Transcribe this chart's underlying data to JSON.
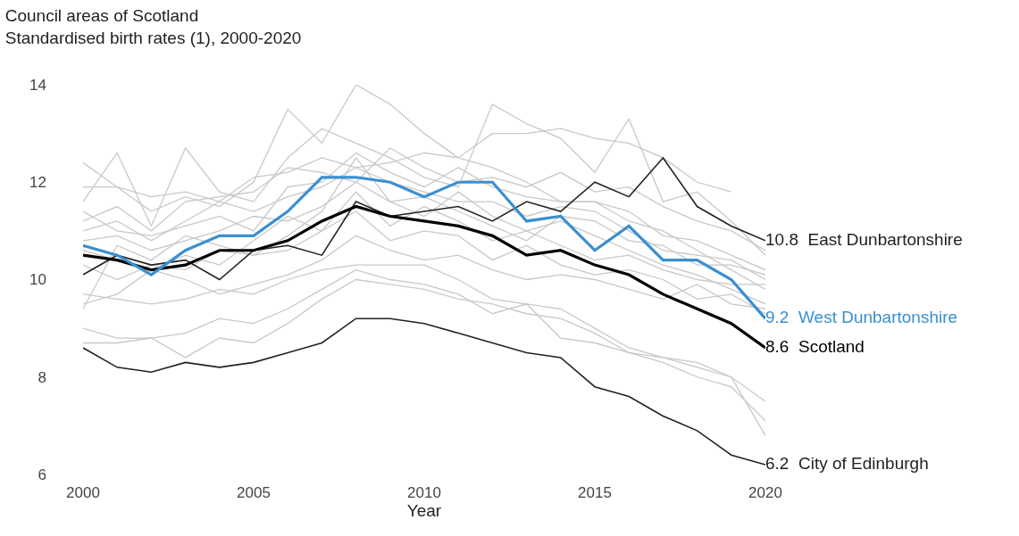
{
  "chart_data": {
    "type": "line",
    "title": "Council areas of Scotland",
    "subtitle": "Standardised birth rates (1), 2000-2020",
    "xlabel": "Year",
    "x": [
      2000,
      2001,
      2002,
      2003,
      2004,
      2005,
      2006,
      2007,
      2008,
      2009,
      2010,
      2011,
      2012,
      2013,
      2014,
      2015,
      2016,
      2017,
      2018,
      2019,
      2020
    ],
    "xlim": [
      2000,
      2020
    ],
    "xticks": [
      2000,
      2005,
      2010,
      2015,
      2020
    ],
    "ylim": [
      6,
      14
    ],
    "yticks": [
      6,
      8,
      10,
      12,
      14
    ],
    "marker": "none",
    "line_style": "solid",
    "series": [
      {
        "color": "#c8c8c8",
        "values": [
          8.7,
          8.7,
          8.8,
          8.4,
          8.8,
          8.7,
          9.1,
          9.6,
          10.0,
          9.9,
          9.8,
          9.6,
          9.5,
          9.3,
          9.2,
          8.9,
          8.5,
          8.4,
          8.2,
          8.0,
          7.5
        ]
      },
      {
        "color": "#c8c8c8",
        "values": [
          9.0,
          8.8,
          8.8,
          8.9,
          9.2,
          9.1,
          9.4,
          9.8,
          10.2,
          10.0,
          9.9,
          9.7,
          9.3,
          9.5,
          8.8,
          8.7,
          8.5,
          8.3,
          8.0,
          7.8,
          7.1
        ]
      },
      {
        "color": "#c8c8c8",
        "values": [
          9.7,
          9.6,
          9.5,
          9.6,
          9.8,
          9.7,
          10.0,
          10.2,
          10.3,
          10.3,
          10.3,
          10.0,
          9.6,
          9.5,
          9.4,
          9.0,
          8.6,
          8.4,
          8.3,
          8.0,
          6.8
        ]
      },
      {
        "color": "#c8c8c8",
        "values": [
          9.5,
          9.7,
          10.2,
          10.0,
          9.7,
          9.9,
          10.1,
          10.4,
          10.9,
          10.6,
          10.4,
          10.5,
          10.2,
          10.0,
          10.1,
          10.0,
          9.8,
          9.6,
          9.9,
          9.5,
          9.4
        ]
      },
      {
        "color": "#c8c8c8",
        "values": [
          12.4,
          11.9,
          11.4,
          11.7,
          11.5,
          12.0,
          13.5,
          12.8,
          14.0,
          13.6,
          13.0,
          12.5,
          12.3,
          12.0,
          11.6,
          11.6,
          11.4,
          10.9,
          10.8,
          10.5,
          10.2
        ]
      },
      {
        "color": "#c8c8c8",
        "values": [
          11.6,
          12.6,
          11.1,
          12.7,
          11.8,
          11.6,
          12.5,
          13.1,
          12.8,
          12.5,
          12.1,
          11.9,
          13.6,
          13.2,
          12.9,
          12.2,
          13.3,
          11.6,
          11.8,
          11.2,
          10.5
        ]
      },
      {
        "color": "#c8c8c8",
        "values": [
          11.9,
          11.9,
          11.7,
          11.8,
          11.6,
          12.1,
          12.2,
          12.5,
          12.3,
          12.4,
          12.6,
          12.5,
          13.0,
          13.0,
          13.1,
          12.9,
          12.8,
          12.5,
          12.0,
          11.8,
          null
        ]
      },
      {
        "color": "#c8c8c8",
        "values": [
          11.0,
          11.2,
          10.8,
          11.2,
          11.6,
          11.4,
          11.7,
          11.9,
          12.3,
          12.0,
          11.8,
          11.6,
          11.6,
          11.3,
          11.5,
          11.4,
          11.0,
          10.6,
          10.5,
          10.4,
          10.0
        ]
      },
      {
        "color": "#c8c8c8",
        "values": [
          10.8,
          10.9,
          10.6,
          10.8,
          11.0,
          11.3,
          11.2,
          11.5,
          12.0,
          11.6,
          11.3,
          11.8,
          11.3,
          11.0,
          11.2,
          10.9,
          10.6,
          10.3,
          10.1,
          9.8,
          9.5
        ]
      },
      {
        "color": "#c8c8c8",
        "values": [
          11.4,
          11.0,
          10.9,
          11.1,
          11.3,
          11.0,
          11.9,
          12.0,
          12.6,
          12.2,
          11.9,
          12.3,
          11.9,
          11.7,
          11.6,
          11.6,
          11.2,
          11.0,
          10.6,
          10.2,
          9.8
        ]
      },
      {
        "color": "#c8c8c8",
        "values": [
          10.3,
          10.0,
          10.3,
          10.2,
          10.6,
          10.5,
          10.6,
          11.0,
          11.4,
          10.8,
          11.0,
          10.9,
          10.4,
          10.7,
          10.3,
          10.1,
          10.2,
          10.0,
          9.6,
          9.7,
          9.3
        ]
      },
      {
        "color": "#c8c8c8",
        "values": [
          11.2,
          11.5,
          11.0,
          11.6,
          11.7,
          11.8,
          12.3,
          12.2,
          12.0,
          12.7,
          12.3,
          12.0,
          12.1,
          11.9,
          12.2,
          11.8,
          11.9,
          11.5,
          11.2,
          11.0,
          10.6
        ]
      },
      {
        "color": "#c8c8c8",
        "values": [
          10.6,
          10.4,
          10.2,
          10.5,
          10.3,
          10.8,
          11.3,
          11.0,
          11.8,
          11.1,
          11.5,
          11.2,
          10.8,
          11.0,
          10.7,
          10.4,
          10.5,
          10.2,
          10.0,
          9.9,
          9.9
        ]
      },
      {
        "color": "#c8c8c8",
        "values": [
          9.4,
          10.7,
          10.4,
          10.9,
          10.7,
          10.5,
          10.9,
          11.4,
          12.5,
          11.6,
          11.7,
          11.4,
          11.1,
          10.8,
          11.3,
          11.2,
          10.8,
          10.7,
          10.3,
          10.3,
          10.1
        ]
      },
      {
        "name": "City of Edinburgh",
        "color": "#222222",
        "values": [
          8.6,
          8.2,
          8.1,
          8.3,
          8.2,
          8.3,
          8.5,
          8.7,
          9.2,
          9.2,
          9.1,
          8.9,
          8.7,
          8.5,
          8.4,
          7.8,
          7.6,
          7.2,
          6.9,
          6.4,
          6.2
        ],
        "value_labels": [
          null,
          null,
          null,
          null,
          null,
          null,
          null,
          null,
          null,
          null,
          null,
          null,
          null,
          null,
          null,
          null,
          null,
          null,
          null,
          null,
          "6.2"
        ]
      },
      {
        "name": "East Dunbartonshire",
        "color": "#222222",
        "values": [
          10.1,
          10.5,
          10.3,
          10.4,
          10.0,
          10.6,
          10.7,
          10.5,
          11.6,
          11.3,
          11.4,
          11.5,
          11.2,
          11.6,
          11.4,
          12.0,
          11.7,
          12.5,
          11.5,
          11.1,
          10.8
        ],
        "value_labels": [
          null,
          null,
          null,
          null,
          null,
          null,
          null,
          null,
          null,
          null,
          null,
          null,
          null,
          null,
          null,
          null,
          null,
          null,
          null,
          null,
          "10.8"
        ]
      },
      {
        "name": "Scotland",
        "color": "#000000",
        "values": [
          10.5,
          10.4,
          10.2,
          10.3,
          10.6,
          10.6,
          10.8,
          11.2,
          11.5,
          11.3,
          11.2,
          11.1,
          10.9,
          10.5,
          10.6,
          10.3,
          10.1,
          9.7,
          9.4,
          9.1,
          8.6
        ],
        "value_labels": [
          null,
          null,
          null,
          null,
          null,
          null,
          null,
          null,
          null,
          null,
          null,
          null,
          null,
          null,
          null,
          null,
          null,
          null,
          null,
          null,
          "8.6"
        ]
      },
      {
        "name": "West Dunbartonshire",
        "color": "#3a8fd0",
        "values": [
          10.7,
          10.5,
          10.1,
          10.6,
          10.9,
          10.9,
          11.4,
          12.1,
          12.1,
          12.0,
          11.7,
          12.0,
          12.0,
          11.2,
          11.3,
          10.6,
          11.1,
          10.4,
          10.4,
          10.0,
          9.2
        ],
        "value_labels": [
          null,
          null,
          null,
          null,
          null,
          null,
          null,
          null,
          null,
          null,
          null,
          null,
          null,
          null,
          null,
          null,
          null,
          null,
          null,
          null,
          "9.2"
        ]
      }
    ]
  }
}
